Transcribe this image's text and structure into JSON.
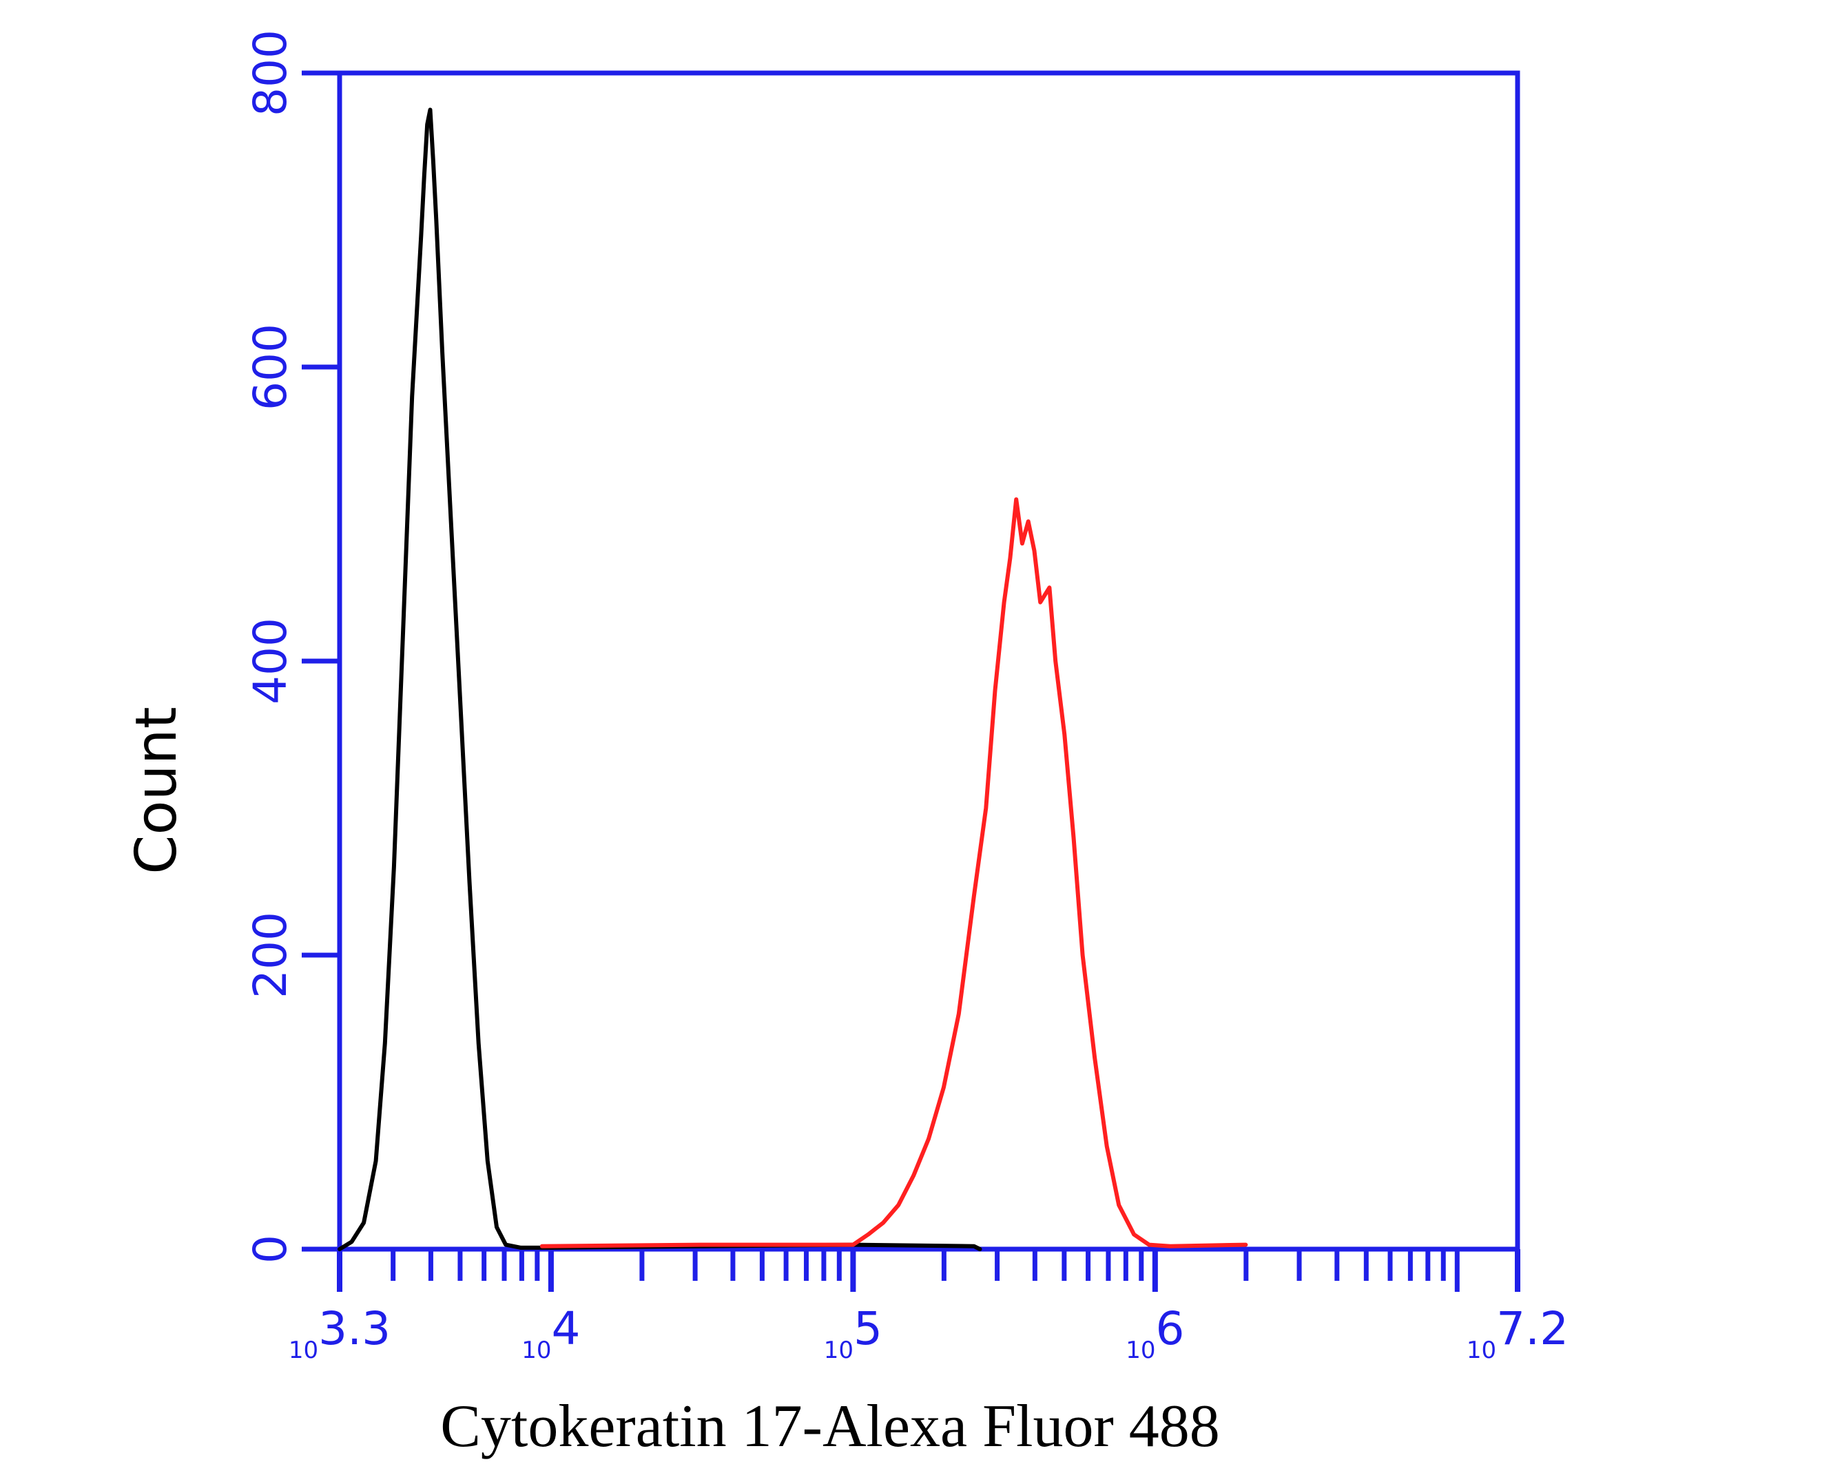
{
  "chart_data": {
    "type": "line",
    "title": "",
    "xlabel": "Cytokeratin 17-Alexa Fluor 488",
    "ylabel": "Count",
    "x_scale": "log10",
    "xlim_log10": [
      3.3,
      7.2
    ],
    "ylim": [
      0,
      800
    ],
    "y_ticks": [
      {
        "value": 0,
        "label": "0"
      },
      {
        "value": 200,
        "label": "200"
      },
      {
        "value": 400,
        "label": "400"
      },
      {
        "value": 600,
        "label": "600"
      },
      {
        "value": 800,
        "label": "800"
      }
    ],
    "x_ticks": [
      {
        "value": 3.3,
        "base": "10",
        "exp": "3.3"
      },
      {
        "value": 4,
        "base": "10",
        "exp": "4"
      },
      {
        "value": 5,
        "base": "10",
        "exp": "5"
      },
      {
        "value": 6,
        "base": "10",
        "exp": "6"
      },
      {
        "value": 7.2,
        "base": "10",
        "exp": "7.2"
      }
    ],
    "grid": false,
    "legend": "none",
    "axis_color": "#1f1fe8",
    "series": [
      {
        "color": "#000000",
        "points_log10x": [
          [
            3.3,
            0
          ],
          [
            3.34,
            5
          ],
          [
            3.38,
            18
          ],
          [
            3.42,
            60
          ],
          [
            3.45,
            140
          ],
          [
            3.48,
            260
          ],
          [
            3.51,
            420
          ],
          [
            3.54,
            580
          ],
          [
            3.57,
            690
          ],
          [
            3.58,
            730
          ],
          [
            3.59,
            765
          ],
          [
            3.6,
            775
          ],
          [
            3.61,
            740
          ],
          [
            3.62,
            700
          ],
          [
            3.64,
            610
          ],
          [
            3.67,
            490
          ],
          [
            3.7,
            370
          ],
          [
            3.73,
            250
          ],
          [
            3.76,
            140
          ],
          [
            3.79,
            60
          ],
          [
            3.82,
            15
          ],
          [
            3.85,
            3
          ],
          [
            3.9,
            1
          ],
          [
            4.0,
            1
          ],
          [
            4.5,
            2
          ],
          [
            5.0,
            3
          ],
          [
            5.4,
            2
          ],
          [
            5.42,
            0
          ]
        ]
      },
      {
        "color": "#ff2020",
        "points_log10x": [
          [
            3.97,
            2
          ],
          [
            4.5,
            3
          ],
          [
            5.0,
            3
          ],
          [
            5.05,
            10
          ],
          [
            5.1,
            18
          ],
          [
            5.15,
            30
          ],
          [
            5.2,
            50
          ],
          [
            5.25,
            75
          ],
          [
            5.3,
            110
          ],
          [
            5.35,
            160
          ],
          [
            5.4,
            240
          ],
          [
            5.44,
            300
          ],
          [
            5.47,
            380
          ],
          [
            5.5,
            440
          ],
          [
            5.52,
            470
          ],
          [
            5.54,
            510
          ],
          [
            5.56,
            480
          ],
          [
            5.58,
            495
          ],
          [
            5.6,
            475
          ],
          [
            5.62,
            440
          ],
          [
            5.65,
            450
          ],
          [
            5.67,
            400
          ],
          [
            5.7,
            350
          ],
          [
            5.73,
            280
          ],
          [
            5.76,
            200
          ],
          [
            5.8,
            130
          ],
          [
            5.84,
            70
          ],
          [
            5.88,
            30
          ],
          [
            5.93,
            10
          ],
          [
            5.98,
            3
          ],
          [
            6.05,
            2
          ],
          [
            6.3,
            3
          ]
        ]
      }
    ]
  }
}
